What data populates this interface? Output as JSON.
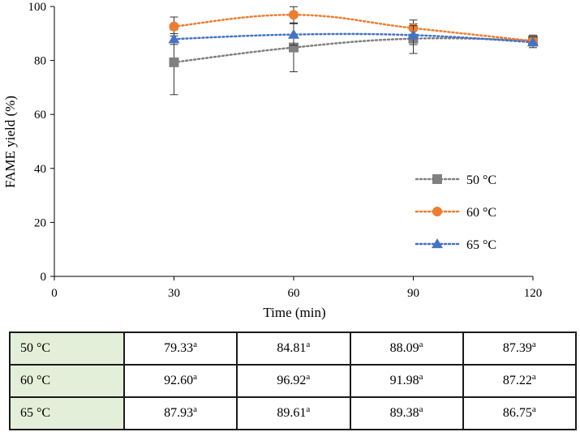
{
  "chart_data": {
    "type": "line",
    "xlabel": "Time (min)",
    "ylabel": "FAME yield (%)",
    "xlim": [
      0,
      120
    ],
    "ylim": [
      0,
      100
    ],
    "x_ticks": [
      "0",
      "30",
      "60",
      "90",
      "120"
    ],
    "y_ticks": [
      "0",
      "20",
      "40",
      "60",
      "80",
      "100"
    ],
    "grid": false,
    "legend_position": "lower-right",
    "x": [
      30,
      60,
      90,
      120
    ],
    "series": [
      {
        "name": "50 °C",
        "marker": "square",
        "color": "#808080",
        "values": [
          79.33,
          84.81,
          88.09,
          87.39
        ],
        "error": [
          12,
          9,
          5.5,
          2
        ]
      },
      {
        "name": "60 °C",
        "marker": "circle",
        "color": "#ed7d31",
        "values": [
          92.6,
          96.92,
          91.98,
          87.22
        ],
        "error": [
          3.5,
          3,
          3,
          1.5
        ]
      },
      {
        "name": "65 °C",
        "marker": "triangle",
        "color": "#4472c4",
        "values": [
          87.93,
          89.61,
          89.38,
          86.75
        ],
        "error": [
          2,
          4,
          3.5,
          2
        ]
      }
    ]
  },
  "table": {
    "rows": [
      {
        "label": "50 °C",
        "cells": [
          {
            "v": "79.33",
            "s": "a"
          },
          {
            "v": "84.81",
            "s": "a"
          },
          {
            "v": "88.09",
            "s": "a"
          },
          {
            "v": "87.39",
            "s": "a"
          }
        ]
      },
      {
        "label": "60 °C",
        "cells": [
          {
            "v": "92.60",
            "s": "a"
          },
          {
            "v": "96.92",
            "s": "a"
          },
          {
            "v": "91.98",
            "s": "a"
          },
          {
            "v": "87.22",
            "s": "a"
          }
        ]
      },
      {
        "label": "65 °C",
        "cells": [
          {
            "v": "87.93",
            "s": "a"
          },
          {
            "v": "89.61",
            "s": "a"
          },
          {
            "v": "89.38",
            "s": "a"
          },
          {
            "v": "86.75",
            "s": "a"
          }
        ]
      }
    ]
  }
}
